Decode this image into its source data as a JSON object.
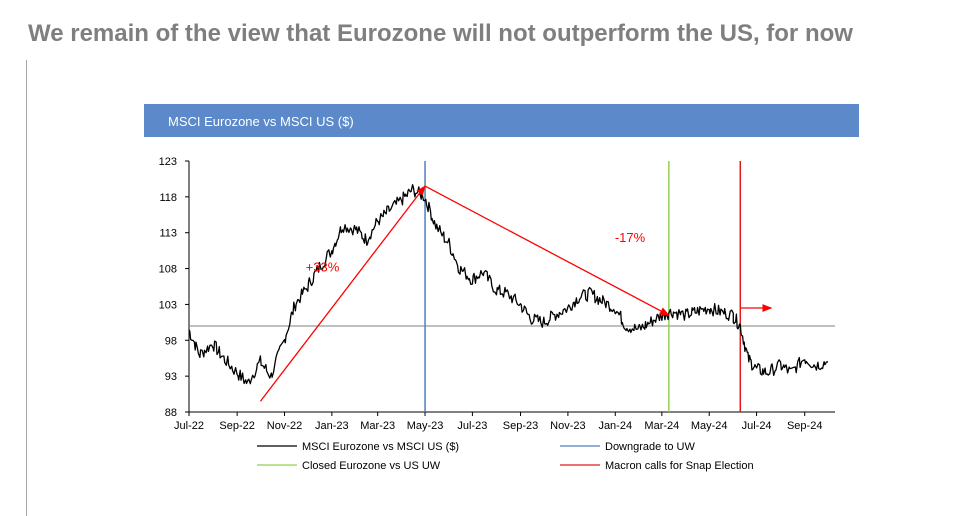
{
  "slide": {
    "title": "We remain of the view that Eurozone will not outperform the US, for now"
  },
  "chart_data": {
    "type": "line",
    "title": "MSCI Eurozone vs MSCI US ($)",
    "ylim": [
      88,
      123
    ],
    "y_ticks": [
      "123",
      "118",
      "113",
      "108",
      "103",
      "98",
      "93",
      "88"
    ],
    "x_ticks": [
      "Jul-22",
      "Sep-22",
      "Nov-22",
      "Jan-23",
      "Mar-23",
      "May-23",
      "Jul-23",
      "Sep-23",
      "Nov-23",
      "Jan-24",
      "Mar-24",
      "May-24",
      "Jul-24",
      "Sep-24"
    ],
    "reference_line_y": 100,
    "series": [
      {
        "name": "MSCI Eurozone vs MSCI US ($)",
        "color": "#000000",
        "x": [
          "2022-07-01",
          "2022-07-15",
          "2022-08-01",
          "2022-08-15",
          "2022-09-01",
          "2022-09-15",
          "2022-10-01",
          "2022-10-15",
          "2022-11-01",
          "2022-11-15",
          "2022-12-01",
          "2022-12-15",
          "2023-01-01",
          "2023-01-15",
          "2023-02-01",
          "2023-02-15",
          "2023-03-01",
          "2023-03-15",
          "2023-04-01",
          "2023-04-15",
          "2023-05-01",
          "2023-05-15",
          "2023-06-01",
          "2023-06-15",
          "2023-07-01",
          "2023-07-15",
          "2023-08-01",
          "2023-08-15",
          "2023-09-01",
          "2023-09-15",
          "2023-10-01",
          "2023-10-15",
          "2023-11-01",
          "2023-11-15",
          "2023-12-01",
          "2023-12-15",
          "2024-01-01",
          "2024-01-15",
          "2024-02-01",
          "2024-02-15",
          "2024-03-01",
          "2024-03-15",
          "2024-04-01",
          "2024-04-15",
          "2024-05-01",
          "2024-05-15",
          "2024-06-01",
          "2024-06-10",
          "2024-06-20",
          "2024-07-01",
          "2024-07-15",
          "2024-08-01",
          "2024-08-15",
          "2024-09-01",
          "2024-09-15",
          "2024-10-01"
        ],
        "y": [
          99.5,
          96,
          97.5,
          95.5,
          93.5,
          92,
          95,
          93,
          98,
          103,
          105.5,
          108,
          110.5,
          114,
          113.5,
          112,
          114.5,
          116,
          117.5,
          119,
          118,
          114,
          111.5,
          108,
          106.5,
          107.5,
          105,
          104.5,
          103,
          101,
          100.5,
          101.5,
          102.5,
          104,
          104.5,
          103.5,
          102.5,
          100,
          99.5,
          100.5,
          101.5,
          102,
          101.5,
          102,
          102.5,
          102,
          101.5,
          100,
          95.5,
          94,
          93.5,
          94.5,
          93.5,
          95.5,
          94.5,
          95
        ]
      }
    ],
    "events": [
      {
        "name": "Downgrade to UW",
        "x": "2023-05-01",
        "color": "#4f81bd"
      },
      {
        "name": "Closed Eurozone vs US UW",
        "x": "2024-03-10",
        "color": "#92d050"
      },
      {
        "name": "Macron calls for Snap Election",
        "x": "2024-06-10",
        "color": "#e31a1c"
      }
    ],
    "annotations": [
      {
        "text": "+33%",
        "color": "#ff0000"
      },
      {
        "text": "-17%",
        "color": "#ff0000"
      }
    ],
    "trend_arrows": [
      {
        "from": [
          "2022-10-01",
          89.5
        ],
        "to": [
          "2023-05-01",
          119.5
        ]
      },
      {
        "from": [
          "2023-05-01",
          119.5
        ],
        "to": [
          "2024-03-10",
          101.5
        ]
      },
      {
        "from": [
          "2024-06-10",
          102.5
        ],
        "to": [
          "2024-07-20",
          102.5
        ]
      }
    ],
    "legend": {
      "position": "bottom",
      "items": [
        "MSCI Eurozone vs MSCI US ($)",
        "Downgrade to UW",
        "Closed Eurozone vs US UW",
        "Macron calls for Snap Election"
      ]
    },
    "grid": false
  }
}
